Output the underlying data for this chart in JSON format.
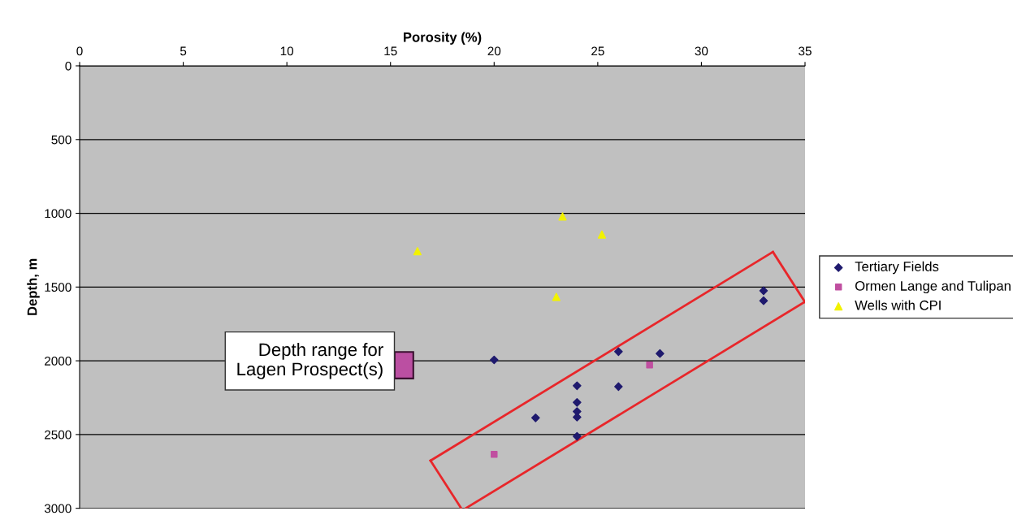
{
  "chart_data": {
    "type": "scatter",
    "xlabel": "Porosity (%)",
    "ylabel": "Depth, m",
    "xlim": [
      0,
      35
    ],
    "xticks": [
      0,
      5,
      10,
      15,
      20,
      25,
      30,
      35
    ],
    "ylim": [
      3000,
      0
    ],
    "yticks": [
      0,
      500,
      1000,
      1500,
      2000,
      2500,
      3000
    ],
    "grid": "y",
    "legend": "right",
    "series": [
      {
        "name": "Tertiary Fields",
        "color": "#1f1a6e",
        "marker": "diamond",
        "x": [
          20,
          26,
          28,
          24,
          26,
          24,
          24,
          24,
          22,
          24,
          33,
          33
        ],
        "values": [
          1994,
          1938,
          1951,
          2169,
          2175,
          2282,
          2344,
          2382,
          2387,
          2512,
          1525,
          1593
        ]
      },
      {
        "name": "Ormen Lange and Tulipan",
        "color": "#c04fa0",
        "marker": "square",
        "x": [
          27.5,
          20
        ],
        "values": [
          2028,
          2634
        ]
      },
      {
        "name": "Wells with CPI",
        "color": "#f2f200",
        "marker": "triangle",
        "x": [
          23.3,
          25.2,
          16.3,
          23
        ],
        "values": [
          1021,
          1144,
          1257,
          1567
        ]
      },
      {
        "type": "line",
        "color": "#e8262a",
        "marker": "none",
        "x": [
          16.93,
          33.45
        ],
        "values": [
          2677,
          1262
        ]
      },
      {
        "type": "line",
        "color": "#e8262a",
        "marker": "none",
        "x": [
          33.45,
          34.99
        ],
        "values": [
          1262,
          1600
        ]
      },
      {
        "type": "line",
        "color": "#e8262a",
        "marker": "none",
        "x": [
          18.63,
          34.99
        ],
        "values": [
          3000,
          1600
        ]
      },
      {
        "type": "line",
        "color": "#e8262a",
        "marker": "none",
        "x": [
          16.93,
          18.41
        ],
        "values": [
          2677,
          3000
        ]
      }
    ],
    "annotations": [
      "Depth range for\nLagen Prospect(s)"
    ]
  }
}
